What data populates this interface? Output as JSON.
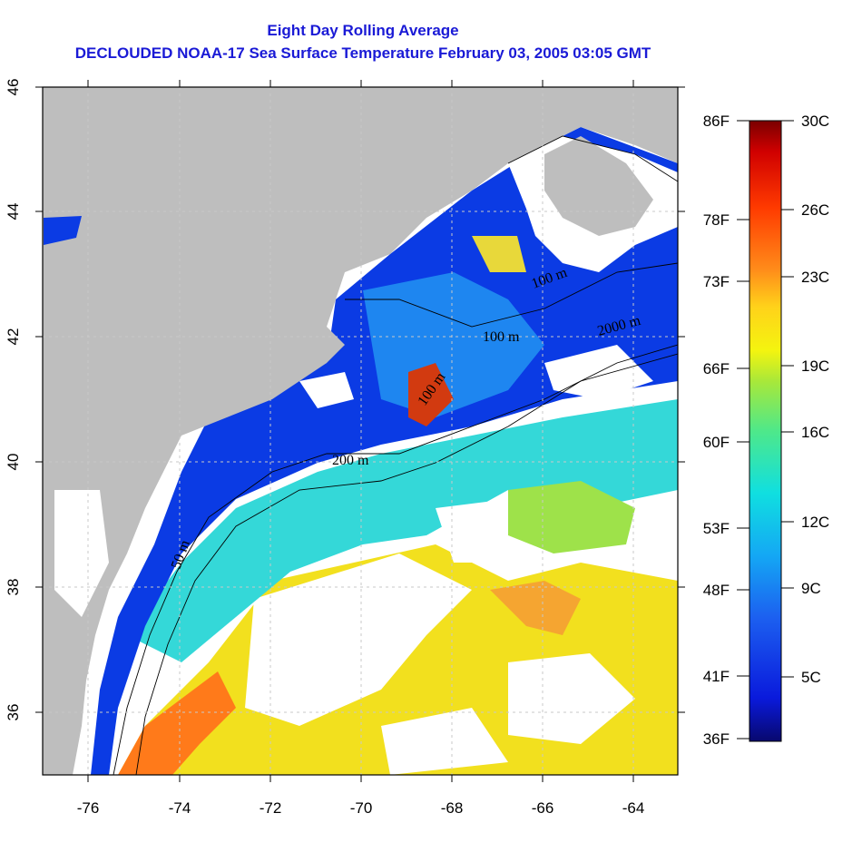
{
  "title": {
    "line1": "Eight Day Rolling Average",
    "line2": "DECLOUDED NOAA-17 Sea Surface Temperature February 03, 2005 03:05 GMT"
  },
  "map": {
    "lon_range": [
      -77,
      -63
    ],
    "lat_range": [
      35,
      46
    ],
    "x_ticks": [
      "-76",
      "-74",
      "-72",
      "-70",
      "-68",
      "-66",
      "-64"
    ],
    "y_ticks": [
      "36",
      "38",
      "40",
      "42",
      "44",
      "46"
    ],
    "gridlines": "dotted",
    "land_color": "#bebebe",
    "no_data_color": "#ffffff",
    "contour_labels": [
      "50 m",
      "200 m",
      "100 m",
      "100 m",
      "100 m",
      "2000 m"
    ]
  },
  "legend": {
    "fahrenheit_labels": [
      "86F",
      "78F",
      "73F",
      "66F",
      "60F",
      "53F",
      "48F",
      "41F",
      "36F"
    ],
    "celsius_labels": [
      "30C",
      "26C",
      "23C",
      "19C",
      "16C",
      "12C",
      "9C",
      "5C"
    ],
    "scale_colors": [
      "#7a0000",
      "#d00000",
      "#ff3a00",
      "#ff8c1a",
      "#ffd21a",
      "#f4f40f",
      "#a8e83a",
      "#4ee88a",
      "#10dfe0",
      "#14a8f4",
      "#1c60f0",
      "#0a1adc",
      "#08086e"
    ]
  }
}
